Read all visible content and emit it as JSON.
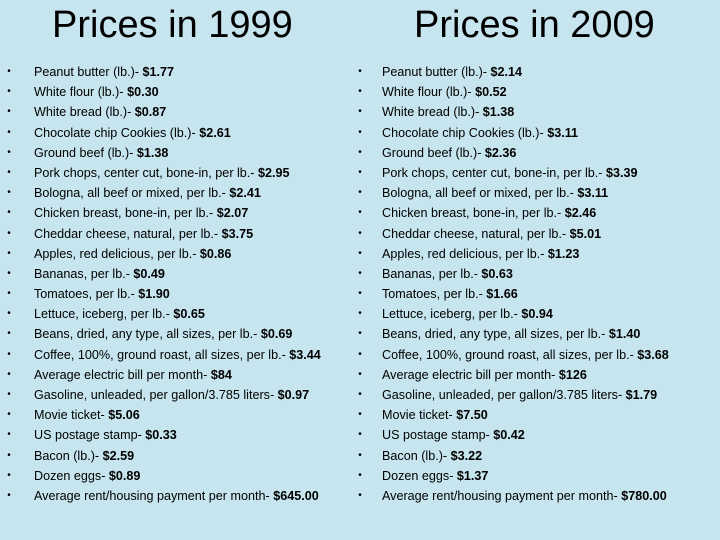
{
  "left": {
    "title": "Prices in 1999",
    "items": [
      {
        "label": "Peanut butter (lb.)- ",
        "price": "$1.77"
      },
      {
        "label": "White flour (lb.)- ",
        "price": "$0.30"
      },
      {
        "label": "White bread (lb.)- ",
        "price": "$0.87"
      },
      {
        "label": "Chocolate chip Cookies (lb.)- ",
        "price": "$2.61"
      },
      {
        "label": "Ground beef (lb.)- ",
        "price": "$1.38"
      },
      {
        "label": "Pork chops, center cut, bone-in, per lb.- ",
        "price": "$2.95"
      },
      {
        "label": "Bologna, all beef or mixed, per lb.- ",
        "price": "$2.41"
      },
      {
        "label": "Chicken breast, bone-in, per lb.- ",
        "price": "$2.07"
      },
      {
        "label": "Cheddar cheese, natural, per lb.- ",
        "price": "$3.75"
      },
      {
        "label": "Apples, red delicious, per lb.- ",
        "price": "$0.86"
      },
      {
        "label": "Bananas, per lb.- ",
        "price": "$0.49"
      },
      {
        "label": "Tomatoes, per lb.- ",
        "price": "$1.90"
      },
      {
        "label": "Lettuce, iceberg, per lb.- ",
        "price": "$0.65"
      },
      {
        "label": "Beans, dried, any type, all sizes, per lb.- ",
        "price": "$0.69"
      },
      {
        "label": "Coffee, 100%, ground roast, all sizes, per lb.- ",
        "price": "$3.44"
      },
      {
        "label": "Average electric bill per month- ",
        "price": "$84"
      },
      {
        "label": "Gasoline, unleaded, per gallon/3.785 liters- ",
        "price": "$0.97"
      },
      {
        "label": "Movie ticket- ",
        "price": "$5.06"
      },
      {
        "label": "US postage stamp- ",
        "price": "$0.33"
      },
      {
        "label": "Bacon (lb.)- ",
        "price": "$2.59"
      },
      {
        "label": "Dozen eggs- ",
        "price": "$0.89"
      },
      {
        "label": "Average rent/housing payment per month- ",
        "price": "$645.00"
      }
    ]
  },
  "right": {
    "title": "Prices in 2009",
    "items": [
      {
        "label": "Peanut butter (lb.)- ",
        "price": "$2.14"
      },
      {
        "label": "White flour (lb.)- ",
        "price": "$0.52"
      },
      {
        "label": "White bread (lb.)- ",
        "price": "$1.38"
      },
      {
        "label": "Chocolate chip Cookies (lb.)- ",
        "price": "$3.11"
      },
      {
        "label": "Ground beef (lb.)- ",
        "price": "$2.36"
      },
      {
        "label": "Pork chops, center cut, bone-in, per lb.- ",
        "price": "$3.39"
      },
      {
        "label": "Bologna, all beef or mixed, per lb.- ",
        "price": "$3.11"
      },
      {
        "label": "Chicken breast, bone-in, per lb.- ",
        "price": "$2.46"
      },
      {
        "label": "Cheddar cheese, natural, per lb.- ",
        "price": "$5.01"
      },
      {
        "label": "Apples, red delicious, per lb.- ",
        "price": "$1.23"
      },
      {
        "label": "Bananas, per lb.- ",
        "price": "$0.63"
      },
      {
        "label": "Tomatoes, per lb.- ",
        "price": "$1.66"
      },
      {
        "label": "Lettuce, iceberg, per lb.- ",
        "price": "$0.94"
      },
      {
        "label": "Beans, dried, any type, all sizes, per lb.- ",
        "price": "$1.40"
      },
      {
        "label": "Coffee, 100%, ground roast, all sizes, per lb.- ",
        "price": "$3.68"
      },
      {
        "label": "Average electric bill per month- ",
        "price": "$126"
      },
      {
        "label": "Gasoline, unleaded, per gallon/3.785 liters- ",
        "price": "$1.79"
      },
      {
        "label": "Movie ticket- ",
        "price": "$7.50"
      },
      {
        "label": "US postage stamp- ",
        "price": "$0.42"
      },
      {
        "label": "Bacon (lb.)- ",
        "price": "$3.22"
      },
      {
        "label": "Dozen eggs- ",
        "price": "$1.37"
      },
      {
        "label": "Average rent/housing payment per month- ",
        "price": "$780.00"
      }
    ]
  },
  "bullet_glyph": "•"
}
